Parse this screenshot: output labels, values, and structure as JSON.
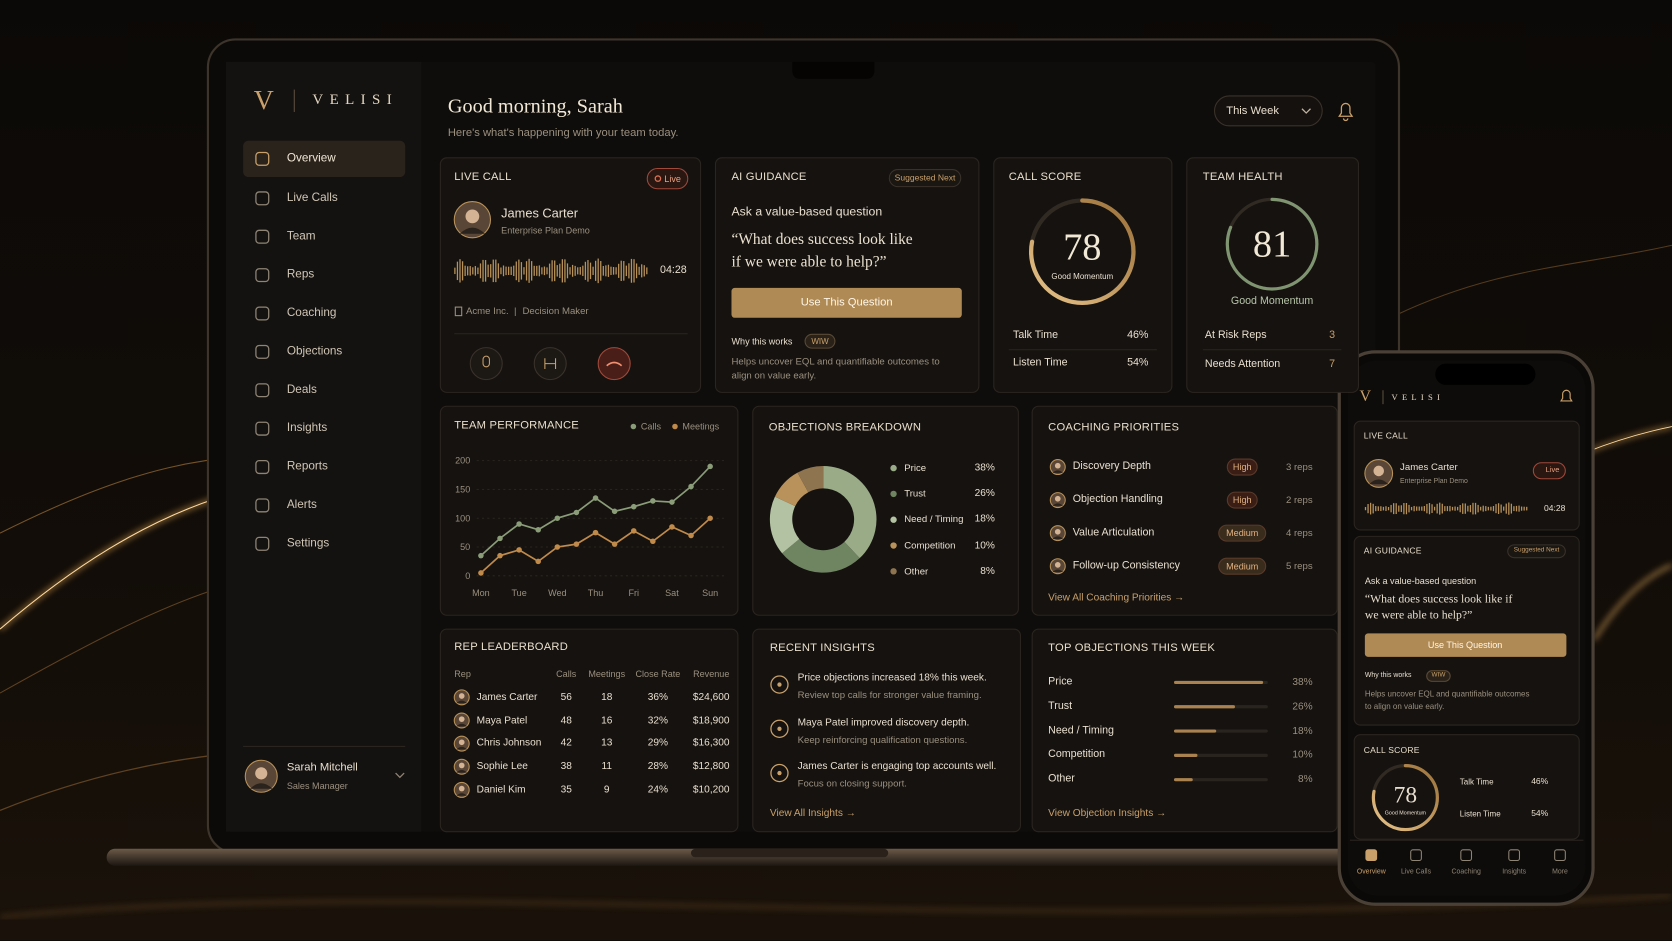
{
  "brand": {
    "logo": "V",
    "name": "VELISI"
  },
  "nav": [
    "Overview",
    "Live Calls",
    "Team",
    "Reps",
    "Coaching",
    "Objections",
    "Deals",
    "Insights",
    "Reports",
    "Alerts",
    "Settings"
  ],
  "user": {
    "name": "Sarah Mitchell",
    "role": "Sales Manager"
  },
  "header": {
    "greeting": "Good morning, Sarah",
    "subtitle": "Here's what's happening with your team today.",
    "period": "This Week"
  },
  "live_call": {
    "title": "LIVE CALL",
    "badge": "Live",
    "name": "James Carter",
    "subtitle": "Enterprise Plan Demo",
    "duration": "04:28",
    "company": "Acme Inc.",
    "separator": "|",
    "role": "Decision Maker"
  },
  "ai_guidance": {
    "title": "AI GUIDANCE",
    "badge": "Suggested Next",
    "heading": "Ask a value-based question",
    "quote": "“What does success look like if we were able to help?”",
    "button": "Use This Question",
    "why": "Why this works",
    "why_badge": "WIW",
    "explanation": "Helps uncover EQL and quantifiable outcomes to align on value early."
  },
  "call_score": {
    "title": "CALL SCORE",
    "score": 78,
    "lim": [
      0,
      100
    ],
    "label": "Good Momentum",
    "metrics": [
      {
        "label": "Talk Time",
        "value": "46%"
      },
      {
        "label": "Listen Time",
        "value": "54%"
      }
    ]
  },
  "team_health": {
    "title": "TEAM HEALTH",
    "score": 81,
    "lim": [
      0,
      100
    ],
    "label": "Good Momentum",
    "metrics": [
      {
        "label": "At Risk Reps",
        "value": 3
      },
      {
        "label": "Needs Attention",
        "value": 7
      }
    ]
  },
  "chart_data": [
    {
      "type": "line",
      "title": "TEAM PERFORMANCE",
      "categories": [
        "Mon",
        null,
        "Tue",
        null,
        "Wed",
        null,
        "Thu",
        null,
        "Fri",
        null,
        "Sat",
        null,
        "Sun"
      ],
      "series": [
        {
          "name": "Calls",
          "color": "#8a9c78",
          "values": [
            35,
            65,
            90,
            80,
            100,
            110,
            135,
            112,
            120,
            130,
            128,
            155,
            190
          ]
        },
        {
          "name": "Meetings",
          "color": "#c08a4a",
          "values": [
            5,
            35,
            45,
            25,
            50,
            55,
            75,
            55,
            78,
            60,
            85,
            70,
            100
          ]
        }
      ],
      "ylim": [
        0,
        200
      ],
      "yticks": [
        0,
        50,
        100,
        150,
        200
      ],
      "grid": true
    },
    {
      "type": "pie",
      "title": "OBJECTIONS BREAKDOWN",
      "categories": [
        "Price",
        "Trust",
        "Need / Timing",
        "Competition",
        "Other"
      ],
      "values": [
        38,
        26,
        18,
        10,
        8
      ],
      "value_labels": [
        "38%",
        "26%",
        "18%",
        "10%",
        "8%"
      ],
      "colors": [
        "#9aab88",
        "#6f8562",
        "#b3c2a2",
        "#b8925a",
        "#8f7450"
      ]
    },
    {
      "type": "bar",
      "orientation": "horizontal",
      "title": "TOP OBJECTIONS THIS WEEK",
      "categories": [
        "Price",
        "Trust",
        "Need / Timing",
        "Competition",
        "Other"
      ],
      "values": [
        38,
        26,
        18,
        10,
        8
      ],
      "value_labels": [
        "38%",
        "26%",
        "18%",
        "10%",
        "8%"
      ],
      "color": "#a9824f",
      "xlim": [
        0,
        40
      ],
      "link": "View Objection Insights →"
    }
  ],
  "coaching": {
    "title": "COACHING PRIORITIES",
    "items": [
      {
        "name": "Discovery Depth",
        "priority": "High",
        "reps": "3 reps"
      },
      {
        "name": "Objection Handling",
        "priority": "High",
        "reps": "2 reps"
      },
      {
        "name": "Value Articulation",
        "priority": "Medium",
        "reps": "4 reps"
      },
      {
        "name": "Follow-up Consistency",
        "priority": "Medium",
        "reps": "5 reps"
      }
    ],
    "link": "View All Coaching Priorities →"
  },
  "leaderboard": {
    "title": "REP LEADERBOARD",
    "columns": [
      "Rep",
      "Calls",
      "Meetings",
      "Close Rate",
      "Revenue"
    ],
    "rows": [
      [
        "James Carter",
        56,
        18,
        "36%",
        "$24,600"
      ],
      [
        "Maya Patel",
        48,
        16,
        "32%",
        "$18,900"
      ],
      [
        "Chris Johnson",
        42,
        13,
        "29%",
        "$16,300"
      ],
      [
        "Sophie Lee",
        38,
        11,
        "28%",
        "$12,800"
      ],
      [
        "Daniel Kim",
        35,
        9,
        "24%",
        "$10,200"
      ]
    ]
  },
  "insights": {
    "title": "RECENT INSIGHTS",
    "items": [
      {
        "title": "Price objections increased 18% this week.",
        "detail": "Review top calls for stronger value framing."
      },
      {
        "title": "Maya Patel improved discovery depth.",
        "detail": "Keep reinforcing qualification questions."
      },
      {
        "title": "James Carter is engaging top accounts well.",
        "detail": "Focus on closing support."
      }
    ],
    "link": "View All Insights →"
  },
  "phone": {
    "tabs": [
      "Overview",
      "Live Calls",
      "Coaching",
      "Insights",
      "More"
    ]
  }
}
